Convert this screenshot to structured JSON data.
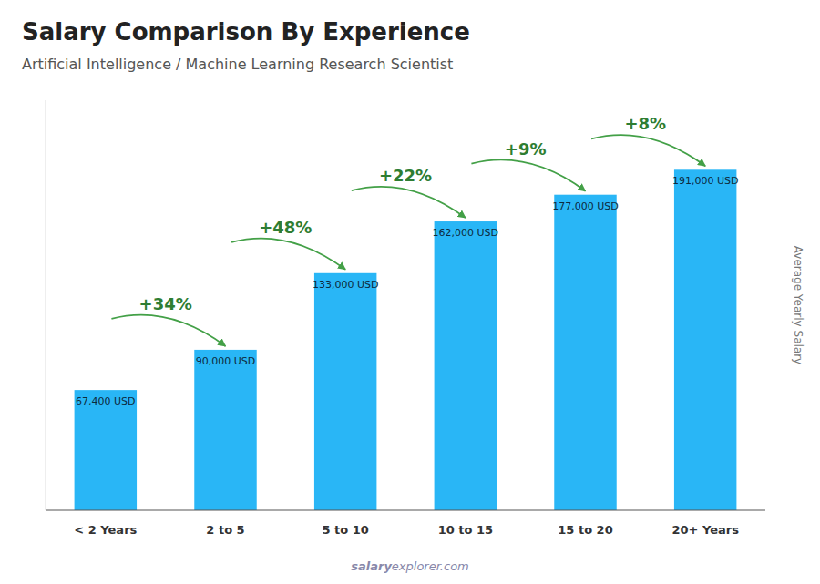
{
  "chart_data": {
    "type": "bar",
    "title": "Salary Comparison By Experience",
    "subtitle": "Artificial Intelligence / Machine Learning Research Scientist",
    "y_label": "Average Yearly Salary",
    "watermark": [
      "salary",
      "explorer.com"
    ],
    "categories": [
      "< 2 Years",
      "2 to 5",
      "5 to 10",
      "10 to 15",
      "15 to 20",
      "20+ Years"
    ],
    "values": [
      67400,
      90000,
      133000,
      162000,
      177000,
      191000
    ],
    "value_labels": [
      "67,400 USD",
      "90,000 USD",
      "133,000 USD",
      "162,000 USD",
      "177,000 USD",
      "191,000 USD"
    ],
    "annotations": [
      "+34%",
      "+48%",
      "+22%",
      "+9%",
      "+8%"
    ],
    "color": "#29B6F6",
    "ylim": [
      0,
      230000
    ],
    "data_labels": true,
    "tick_labels": "x"
  }
}
